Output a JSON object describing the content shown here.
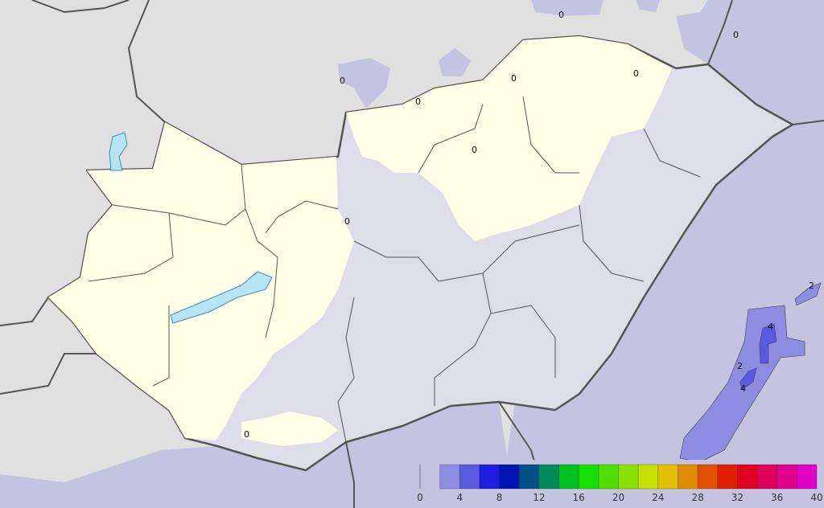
{
  "map": {
    "colors": {
      "outside_land": "#e0e0e0",
      "outside_precip_0_2": "#c4c4e0",
      "country_dry": "#ffffe8",
      "country_precip_0_2": "#dedeea",
      "lake": "#b8e4f8",
      "border": "#555555"
    },
    "contour_labels": [
      {
        "text": "0",
        "id": "nw-slovakia"
      },
      {
        "text": "0",
        "id": "north-1"
      },
      {
        "text": "0",
        "id": "north-2"
      },
      {
        "text": "0",
        "id": "north-3"
      },
      {
        "text": "0",
        "id": "northeast-1"
      },
      {
        "text": "0",
        "id": "northeast-2"
      },
      {
        "text": "0",
        "id": "central"
      },
      {
        "text": "0",
        "id": "mid-north"
      },
      {
        "text": "0",
        "id": "south"
      },
      {
        "text": "2",
        "id": "romania-1"
      },
      {
        "text": "2",
        "id": "romania-2"
      },
      {
        "text": "4",
        "id": "romania-3"
      },
      {
        "text": "4",
        "id": "romania-4"
      }
    ]
  },
  "legend": {
    "ticks": [
      "0",
      "4",
      "8",
      "12",
      "16",
      "20",
      "24",
      "28",
      "32",
      "36",
      "40"
    ],
    "bins": [
      {
        "from": 0,
        "to": 2,
        "color": "none"
      },
      {
        "from": 2,
        "to": 4,
        "color": "#8c8ce0"
      },
      {
        "from": 4,
        "to": 6,
        "color": "#5a5ae0"
      },
      {
        "from": 6,
        "to": 8,
        "color": "#1e1ee0"
      },
      {
        "from": 8,
        "to": 10,
        "color": "#0014b4"
      },
      {
        "from": 10,
        "to": 12,
        "color": "#005088"
      },
      {
        "from": 12,
        "to": 14,
        "color": "#008c5a"
      },
      {
        "from": 14,
        "to": 16,
        "color": "#00c020"
      },
      {
        "from": 16,
        "to": 18,
        "color": "#18e000"
      },
      {
        "from": 18,
        "to": 20,
        "color": "#50e000"
      },
      {
        "from": 20,
        "to": 22,
        "color": "#8ce000"
      },
      {
        "from": 22,
        "to": 24,
        "color": "#c8e000"
      },
      {
        "from": 24,
        "to": 26,
        "color": "#e0c000"
      },
      {
        "from": 26,
        "to": 28,
        "color": "#e08c00"
      },
      {
        "from": 28,
        "to": 30,
        "color": "#e05000"
      },
      {
        "from": 30,
        "to": 32,
        "color": "#e01e00"
      },
      {
        "from": 32,
        "to": 34,
        "color": "#e00020"
      },
      {
        "from": 34,
        "to": 36,
        "color": "#e0005a"
      },
      {
        "from": 36,
        "to": 38,
        "color": "#e0008c"
      },
      {
        "from": 38,
        "to": 40,
        "color": "#e000c8"
      }
    ]
  }
}
